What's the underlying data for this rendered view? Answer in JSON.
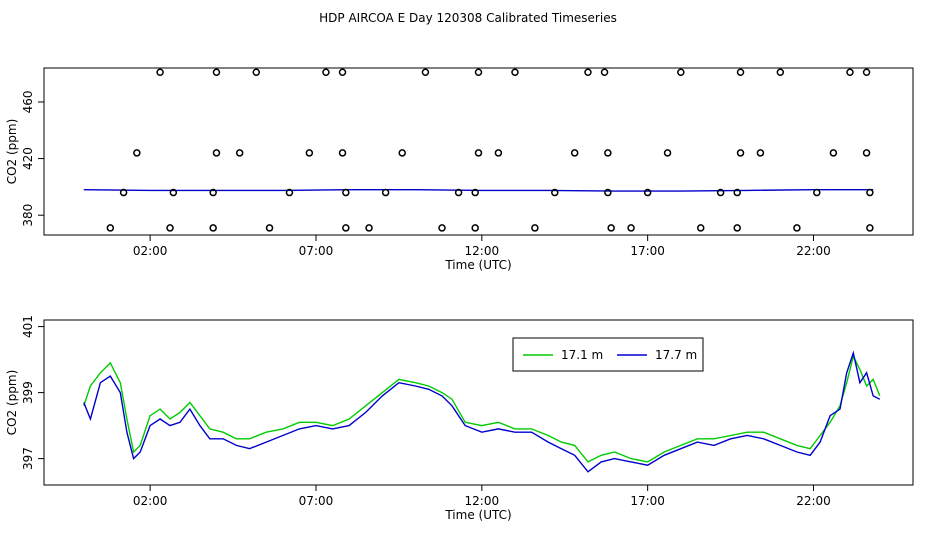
{
  "title": "HDP AIRCOA E  Day 120308  Calibrated Timeseries",
  "chart_data": [
    {
      "type": "scatter",
      "panel": "top",
      "xlabel": "Time (UTC)",
      "ylabel": "CO2 (ppm)",
      "x_unit": "hours UTC",
      "xlim": [
        -1.2,
        25.0
      ],
      "ylim": [
        366,
        484
      ],
      "x_ticks": [
        2,
        7,
        12,
        17,
        22
      ],
      "x_tick_labels": [
        "02:00",
        "07:00",
        "12:00",
        "17:00",
        "22:00"
      ],
      "y_ticks": [
        380,
        420,
        460
      ],
      "y_tick_labels": [
        "380",
        "420",
        "460"
      ],
      "points_high": [
        2.3,
        4.0,
        5.2,
        7.3,
        7.8,
        10.3,
        11.9,
        13.0,
        15.2,
        15.7,
        18.0,
        19.8,
        21.0,
        23.1,
        23.6
      ],
      "points_high_y": 481,
      "points_mid": [
        1.6,
        4.0,
        4.7,
        6.8,
        7.8,
        9.6,
        11.9,
        12.5,
        14.8,
        15.8,
        17.6,
        19.8,
        20.4,
        22.6,
        23.6
      ],
      "points_mid_y": 424,
      "points_low1": [
        1.2,
        2.7,
        3.9,
        6.2,
        7.9,
        9.1,
        11.3,
        11.8,
        14.2,
        15.8,
        17.0,
        19.2,
        19.7,
        22.1,
        23.7
      ],
      "points_low1_y": 396,
      "points_low2": [
        0.8,
        2.6,
        3.9,
        5.6,
        7.9,
        8.6,
        10.8,
        11.8,
        13.6,
        15.9,
        16.5,
        18.6,
        19.7,
        21.5,
        23.7
      ],
      "points_low2_y": 371,
      "series": [
        {
          "name": "",
          "color": "#0000cc",
          "x": [
            0.0,
            2.0,
            4.0,
            6.0,
            8.0,
            10.0,
            12.0,
            14.0,
            16.0,
            18.0,
            20.0,
            22.0,
            23.8
          ],
          "y": [
            398,
            397.5,
            397.5,
            397.5,
            398,
            398,
            397.5,
            397.5,
            397,
            397,
            397.5,
            398,
            398
          ]
        }
      ]
    },
    {
      "type": "line",
      "panel": "bottom",
      "xlabel": "Time (UTC)",
      "ylabel": "CO2 (ppm)",
      "x_unit": "hours UTC",
      "xlim": [
        -1.2,
        25.0
      ],
      "ylim": [
        396.2,
        401.2
      ],
      "x_ticks": [
        2,
        7,
        12,
        17,
        22
      ],
      "x_tick_labels": [
        "02:00",
        "07:00",
        "12:00",
        "17:00",
        "22:00"
      ],
      "y_ticks": [
        397,
        399,
        401
      ],
      "y_tick_labels": [
        "397",
        "399",
        "401"
      ],
      "legend": {
        "position": "top-right",
        "entries": [
          "17.1 m",
          "17.7 m"
        ]
      },
      "series": [
        {
          "name": "17.1 m",
          "color": "#00cc00",
          "x": [
            0.0,
            0.2,
            0.5,
            0.8,
            1.1,
            1.3,
            1.5,
            1.7,
            2.0,
            2.3,
            2.6,
            2.9,
            3.2,
            3.5,
            3.8,
            4.2,
            4.6,
            5.0,
            5.5,
            6.0,
            6.5,
            7.0,
            7.5,
            8.0,
            8.5,
            9.0,
            9.5,
            10.0,
            10.4,
            10.8,
            11.1,
            11.5,
            12.0,
            12.5,
            13.0,
            13.5,
            14.0,
            14.4,
            14.8,
            15.2,
            15.6,
            16.0,
            16.5,
            17.0,
            17.5,
            18.0,
            18.5,
            19.0,
            19.5,
            20.0,
            20.5,
            21.0,
            21.5,
            21.9,
            22.2,
            22.5,
            22.8,
            23.0,
            23.2,
            23.4,
            23.6,
            23.8,
            24.0
          ],
          "y": [
            398.6,
            399.2,
            399.6,
            399.9,
            399.3,
            398.2,
            397.2,
            397.4,
            398.3,
            398.5,
            398.2,
            398.4,
            398.7,
            398.3,
            397.9,
            397.8,
            397.6,
            397.6,
            397.8,
            397.9,
            398.1,
            398.1,
            398.0,
            398.2,
            398.6,
            399.0,
            399.4,
            399.3,
            399.2,
            399.0,
            398.8,
            398.1,
            398.0,
            398.1,
            397.9,
            397.9,
            397.7,
            397.5,
            397.4,
            396.9,
            397.1,
            397.2,
            397.0,
            396.9,
            397.2,
            397.4,
            397.6,
            397.6,
            397.7,
            397.8,
            397.8,
            397.6,
            397.4,
            397.3,
            397.7,
            398.1,
            398.6,
            399.3,
            400.1,
            399.7,
            399.2,
            399.4,
            398.9
          ]
        },
        {
          "name": "17.7 m",
          "color": "#0000cc",
          "x": [
            0.0,
            0.2,
            0.5,
            0.8,
            1.1,
            1.3,
            1.5,
            1.7,
            2.0,
            2.3,
            2.6,
            2.9,
            3.2,
            3.5,
            3.8,
            4.2,
            4.6,
            5.0,
            5.5,
            6.0,
            6.5,
            7.0,
            7.5,
            8.0,
            8.5,
            9.0,
            9.5,
            10.0,
            10.4,
            10.8,
            11.1,
            11.5,
            12.0,
            12.5,
            13.0,
            13.5,
            14.0,
            14.4,
            14.8,
            15.2,
            15.6,
            16.0,
            16.5,
            17.0,
            17.5,
            18.0,
            18.5,
            19.0,
            19.5,
            20.0,
            20.5,
            21.0,
            21.5,
            21.9,
            22.2,
            22.5,
            22.8,
            23.0,
            23.2,
            23.4,
            23.6,
            23.8,
            24.0
          ],
          "y": [
            398.7,
            398.2,
            399.3,
            399.5,
            399.0,
            397.8,
            397.0,
            397.2,
            398.0,
            398.2,
            398.0,
            398.1,
            398.5,
            398.0,
            397.6,
            397.6,
            397.4,
            397.3,
            397.5,
            397.7,
            397.9,
            398.0,
            397.9,
            398.0,
            398.4,
            398.9,
            399.3,
            399.2,
            399.1,
            398.9,
            398.6,
            398.0,
            397.8,
            397.9,
            397.8,
            397.8,
            397.5,
            397.3,
            397.1,
            396.6,
            396.9,
            397.0,
            396.9,
            396.8,
            397.1,
            397.3,
            397.5,
            397.4,
            397.6,
            397.7,
            397.6,
            397.4,
            397.2,
            397.1,
            397.5,
            398.3,
            398.5,
            399.6,
            400.2,
            399.3,
            399.6,
            398.9,
            398.8
          ]
        }
      ]
    }
  ]
}
